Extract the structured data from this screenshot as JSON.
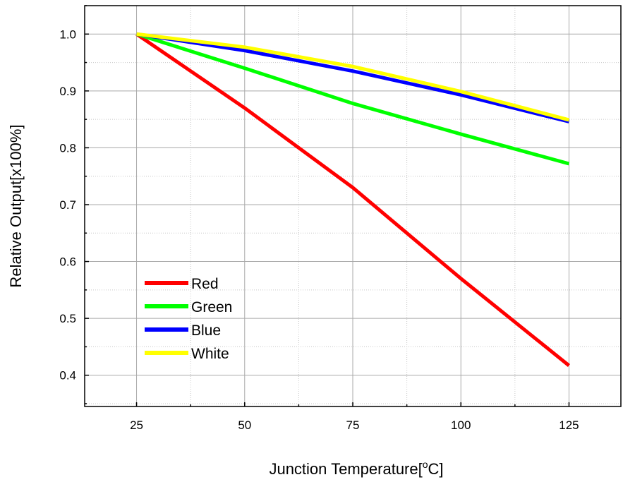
{
  "chart_data": {
    "type": "line",
    "xlabel": "Junction Temperature[",
    "xlabel_degree": "o",
    "xlabel_unit": "C]",
    "ylabel": "Relative Output[x100%]",
    "xlim": [
      13,
      137
    ],
    "ylim": [
      0.345,
      1.05
    ],
    "xticks": [
      25,
      50,
      75,
      100,
      125
    ],
    "xtick_labels": [
      "25",
      "50",
      "75",
      "100",
      "125"
    ],
    "yticks": [
      0.4,
      0.5,
      0.6,
      0.7,
      0.8,
      0.9,
      1.0
    ],
    "ytick_labels": [
      "0.4",
      "0.5",
      "0.6",
      "0.7",
      "0.8",
      "0.9",
      "1.0"
    ],
    "grid": true,
    "legend_position": "bottom-left",
    "series": [
      {
        "name": "Red",
        "color": "#ff0000",
        "x": [
          25,
          50,
          75,
          100,
          125
        ],
        "y": [
          1.0,
          0.87,
          0.73,
          0.57,
          0.417
        ]
      },
      {
        "name": "Green",
        "color": "#00ff00",
        "x": [
          25,
          50,
          75,
          100,
          125
        ],
        "y": [
          1.0,
          0.94,
          0.878,
          0.824,
          0.772
        ]
      },
      {
        "name": "Blue",
        "color": "#0000ff",
        "x": [
          25,
          50,
          75,
          100,
          125
        ],
        "y": [
          1.0,
          0.971,
          0.935,
          0.893,
          0.846
        ]
      },
      {
        "name": "White",
        "color": "#ffff00",
        "x": [
          25,
          50,
          75,
          100,
          125
        ],
        "y": [
          1.0,
          0.977,
          0.943,
          0.899,
          0.849
        ]
      }
    ]
  }
}
